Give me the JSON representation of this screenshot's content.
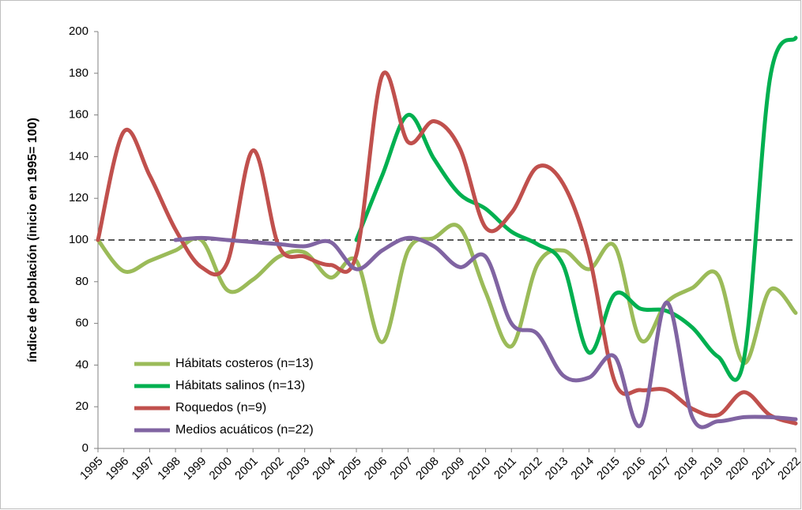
{
  "chart_data": {
    "type": "line",
    "y_label": "índice de población (inicio en 1995= 100)",
    "categories": [
      "1995",
      "1996",
      "1997",
      "1998",
      "1999",
      "2000",
      "2001",
      "2002",
      "2003",
      "2004",
      "2005",
      "2006",
      "2007",
      "2008",
      "2009",
      "2010",
      "2011",
      "2012",
      "2013",
      "2014",
      "2015",
      "2016",
      "2017",
      "2018",
      "2019",
      "2020",
      "2021",
      "2022"
    ],
    "series": [
      {
        "name": "Hábitats costeros (n=13)",
        "color": "#9bbb59",
        "values": [
          100,
          85,
          90,
          95,
          100,
          76,
          81,
          92,
          94,
          82,
          90,
          51,
          95,
          101,
          106,
          75,
          49,
          88,
          95,
          86,
          97,
          52,
          70,
          77,
          83,
          41,
          76,
          65
        ]
      },
      {
        "name": "Hábitats salinos (n=13)",
        "color": "#00b050",
        "values": [
          null,
          null,
          null,
          null,
          null,
          null,
          null,
          null,
          null,
          null,
          100,
          131,
          160,
          139,
          122,
          115,
          104,
          98,
          88,
          46,
          74,
          67,
          66,
          58,
          44,
          43,
          177,
          197
        ]
      },
      {
        "name": "Roquedos (n=9)",
        "color": "#c0504d",
        "values": [
          100,
          152,
          131,
          105,
          87,
          89,
          143,
          97,
          92,
          88,
          93,
          179,
          147,
          157,
          144,
          106,
          113,
          135,
          127,
          93,
          32,
          28,
          28,
          19,
          16,
          27,
          16,
          12
        ]
      },
      {
        "name": "Medios acuáticos (n=22)",
        "color": "#8064a2",
        "values": [
          null,
          null,
          null,
          100,
          101,
          100,
          99,
          98,
          97,
          99,
          86,
          95,
          101,
          97,
          87,
          92,
          60,
          55,
          35,
          34,
          44,
          11,
          70,
          15,
          13,
          15,
          15,
          14
        ]
      }
    ],
    "reference_line": 100,
    "ylim": [
      0,
      200
    ],
    "yticks": [
      0,
      20,
      40,
      60,
      80,
      100,
      120,
      140,
      160,
      180,
      200
    ],
    "legend": "lower-left"
  }
}
